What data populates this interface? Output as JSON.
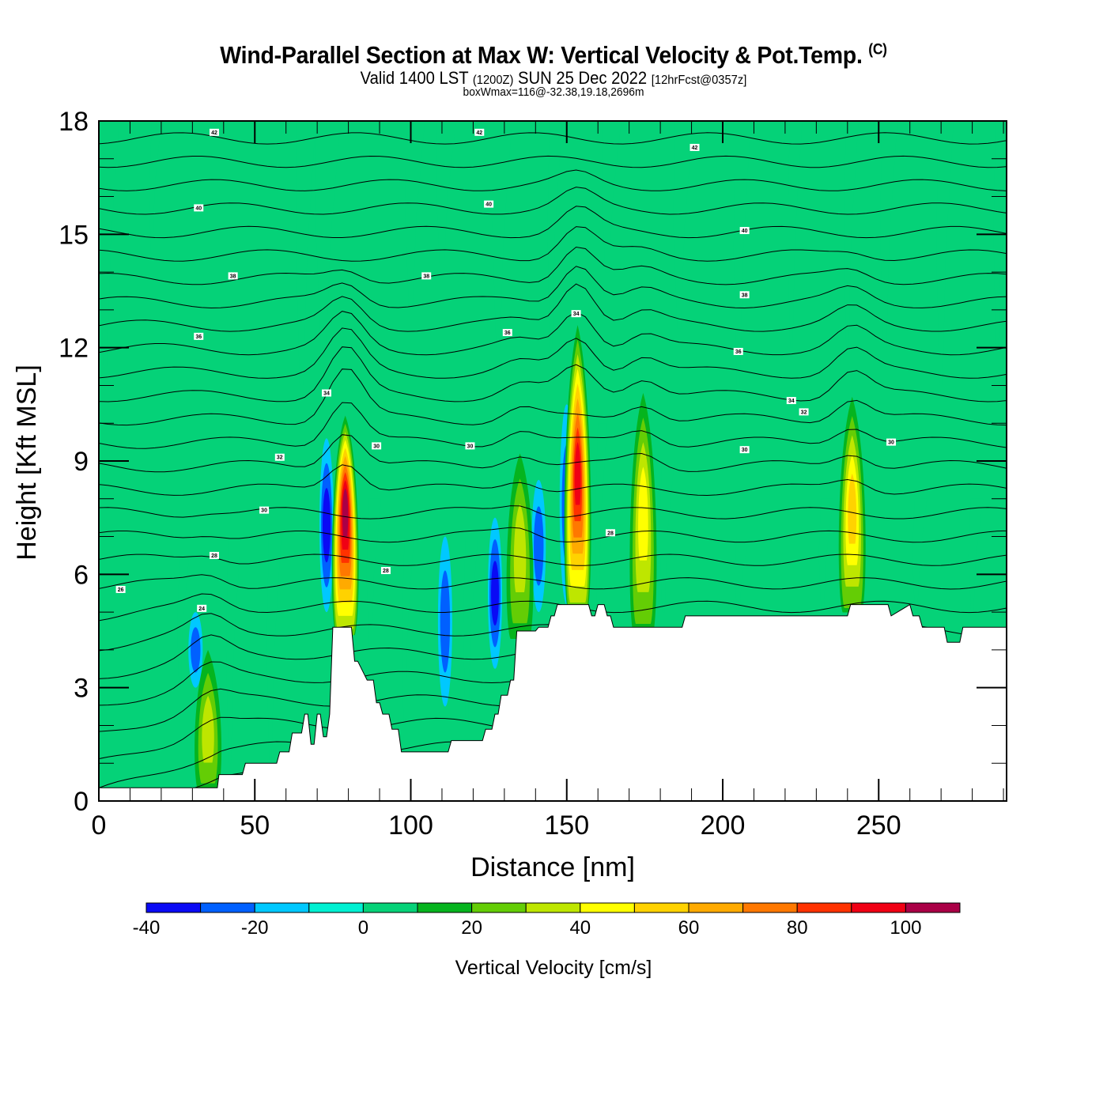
{
  "header": {
    "title": "Wind-Parallel Section at Max W: Vertical Velocity & Pot.Temp.",
    "copyright_mark": "(C)",
    "valid_prefix": "Valid 1400 LST",
    "valid_utc": "(1200Z)",
    "valid_date": "SUN 25 Dec 2022",
    "forecast_info": "[12hrFcst@0357z]",
    "box_wmax": "boxWmax=116@-32.38,19.18,2696m"
  },
  "chart_data": {
    "type": "heatmap",
    "title": "Wind-Parallel Section at Max W: Vertical Velocity & Pot.Temp.",
    "xlabel": "Distance [nm]",
    "ylabel": "Height [Kft MSL]",
    "xlim": [
      0,
      291
    ],
    "ylim": [
      0,
      18
    ],
    "x_ticks": [
      0,
      50,
      100,
      150,
      200,
      250
    ],
    "x_tick_labels": [
      "0",
      "50",
      "100",
      "150",
      "200",
      "250"
    ],
    "x_minor_step": 10,
    "y_ticks": [
      0,
      3,
      6,
      9,
      12,
      15,
      18
    ],
    "y_tick_labels": [
      "0",
      "3",
      "6",
      "9",
      "12",
      "15",
      "18"
    ],
    "y_minor_step": 1,
    "background_value_range": [
      0,
      10
    ],
    "colorbar": {
      "title": "Vertical Velocity [cm/s]",
      "bounds": [
        -40,
        -30,
        -20,
        -10,
        0,
        10,
        20,
        30,
        40,
        50,
        60,
        70,
        80,
        90,
        100,
        110
      ],
      "tick_values": [
        -40,
        -20,
        0,
        20,
        40,
        60,
        80,
        100
      ],
      "tick_labels": [
        "-40",
        "-20",
        "0",
        "20",
        "40",
        "60",
        "80",
        "100"
      ],
      "colors": [
        "#0a0af5",
        "#0060ff",
        "#00c8ff",
        "#00f0d2",
        "#05d278",
        "#05b41e",
        "#64cd05",
        "#bee600",
        "#ffff00",
        "#ffd200",
        "#ffaa00",
        "#ff7800",
        "#ff3200",
        "#f00014",
        "#aa0046"
      ],
      "placement": "bottom"
    },
    "terrain": {
      "distance_nm": [
        0,
        38,
        38.5,
        46,
        47,
        57,
        58,
        61,
        62,
        65,
        66,
        67,
        68,
        69,
        70,
        71,
        72,
        73,
        74,
        75,
        81,
        82,
        83,
        86,
        87,
        88,
        89,
        90,
        91,
        93,
        94,
        96,
        97,
        104,
        105,
        112,
        113,
        116,
        117,
        123,
        124,
        126,
        127,
        128,
        129,
        131,
        132,
        133,
        134,
        140,
        141,
        144,
        145,
        146,
        147,
        148,
        150,
        151,
        157,
        158,
        159,
        160,
        162,
        163,
        164,
        165,
        166,
        187,
        188,
        240,
        241,
        253,
        254,
        260,
        261,
        263,
        264,
        271,
        272,
        276,
        277,
        291
      ],
      "height_kft": [
        0.35,
        0.35,
        0.7,
        0.7,
        1.0,
        1.0,
        1.3,
        1.3,
        1.8,
        1.8,
        2.3,
        2.3,
        1.5,
        1.5,
        2.3,
        2.3,
        1.7,
        1.7,
        2.3,
        4.6,
        4.6,
        3.7,
        3.7,
        3.2,
        3.2,
        3.2,
        2.6,
        2.6,
        2.3,
        2.3,
        1.9,
        1.9,
        1.3,
        1.3,
        1.3,
        1.3,
        1.6,
        1.6,
        1.6,
        1.6,
        1.9,
        1.9,
        2.3,
        2.3,
        2.8,
        2.8,
        3.2,
        3.2,
        4.5,
        4.5,
        4.6,
        4.6,
        4.9,
        4.9,
        5.2,
        5.2,
        5.2,
        5.2,
        5.2,
        4.9,
        4.9,
        5.2,
        5.2,
        4.9,
        4.9,
        4.6,
        4.6,
        4.6,
        4.9,
        4.9,
        5.2,
        5.2,
        4.9,
        5.2,
        4.9,
        4.9,
        4.6,
        4.6,
        4.2,
        4.2,
        4.6,
        4.6
      ]
    },
    "updrafts": [
      {
        "distance_nm": 79,
        "peak_cm_s": 100,
        "base_kft": 4.6,
        "top_kft": 10.2,
        "peak_kft": 8.0
      },
      {
        "distance_nm": 153.5,
        "peak_cm_s": 90,
        "base_kft": 5.2,
        "top_kft": 12.6,
        "peak_kft": 9.0
      },
      {
        "distance_nm": 241.5,
        "peak_cm_s": 50,
        "base_kft": 5.2,
        "top_kft": 10.7,
        "peak_kft": 8.0
      },
      {
        "distance_nm": 174.5,
        "peak_cm_s": 40,
        "base_kft": 4.6,
        "top_kft": 10.8,
        "peak_kft": 8.0
      },
      {
        "distance_nm": 135,
        "peak_cm_s": 30,
        "base_kft": 4.5,
        "top_kft": 9.2,
        "peak_kft": 7.0
      },
      {
        "distance_nm": 35,
        "peak_cm_s": 30,
        "base_kft": 0.4,
        "top_kft": 4.0,
        "peak_kft": 2.0
      }
    ],
    "downdrafts": [
      {
        "distance_nm": 73,
        "min_cm_s": -30,
        "base_kft": 5.0,
        "top_kft": 9.6
      },
      {
        "distance_nm": 31,
        "min_cm_s": -20,
        "base_kft": 3.0,
        "top_kft": 5.0
      },
      {
        "distance_nm": 127,
        "min_cm_s": -30,
        "base_kft": 3.5,
        "top_kft": 7.5
      },
      {
        "distance_nm": 141,
        "min_cm_s": -20,
        "base_kft": 5.0,
        "top_kft": 8.5
      },
      {
        "distance_nm": 150,
        "min_cm_s": -20,
        "base_kft": 5.2,
        "top_kft": 10.5
      },
      {
        "distance_nm": 111,
        "min_cm_s": -20,
        "base_kft": 2.5,
        "top_kft": 7.0
      }
    ],
    "theta_contours": {
      "name": "Potential Temperature",
      "interval": 1,
      "labels": [
        {
          "value": "42",
          "distance_nm": 37,
          "height_kft": 17.7
        },
        {
          "value": "42",
          "distance_nm": 122,
          "height_kft": 17.7
        },
        {
          "value": "42",
          "distance_nm": 191,
          "height_kft": 17.3
        },
        {
          "value": "40",
          "distance_nm": 32,
          "height_kft": 15.7
        },
        {
          "value": "40",
          "distance_nm": 125,
          "height_kft": 15.8
        },
        {
          "value": "40",
          "distance_nm": 207,
          "height_kft": 15.1
        },
        {
          "value": "38",
          "distance_nm": 43,
          "height_kft": 13.9
        },
        {
          "value": "38",
          "distance_nm": 105,
          "height_kft": 13.9
        },
        {
          "value": "38",
          "distance_nm": 207,
          "height_kft": 13.4
        },
        {
          "value": "36",
          "distance_nm": 32,
          "height_kft": 12.3
        },
        {
          "value": "36",
          "distance_nm": 131,
          "height_kft": 12.4
        },
        {
          "value": "36",
          "distance_nm": 205,
          "height_kft": 11.9
        },
        {
          "value": "34",
          "distance_nm": 153,
          "height_kft": 12.9
        },
        {
          "value": "34",
          "distance_nm": 73,
          "height_kft": 10.8
        },
        {
          "value": "34",
          "distance_nm": 222,
          "height_kft": 10.6
        },
        {
          "value": "32",
          "distance_nm": 58,
          "height_kft": 9.1
        },
        {
          "value": "32",
          "distance_nm": 226,
          "height_kft": 10.3
        },
        {
          "value": "30",
          "distance_nm": 89,
          "height_kft": 9.4
        },
        {
          "value": "30",
          "distance_nm": 119,
          "height_kft": 9.4
        },
        {
          "value": "30",
          "distance_nm": 53,
          "height_kft": 7.7
        },
        {
          "value": "30",
          "distance_nm": 254,
          "height_kft": 9.5
        },
        {
          "value": "30",
          "distance_nm": 207,
          "height_kft": 9.3
        },
        {
          "value": "28",
          "distance_nm": 37,
          "height_kft": 6.5
        },
        {
          "value": "28",
          "distance_nm": 92,
          "height_kft": 6.1
        },
        {
          "value": "28",
          "distance_nm": 164,
          "height_kft": 7.1
        },
        {
          "value": "26",
          "distance_nm": 7,
          "height_kft": 5.6
        },
        {
          "value": "24",
          "distance_nm": 33,
          "height_kft": 5.1
        }
      ]
    }
  }
}
